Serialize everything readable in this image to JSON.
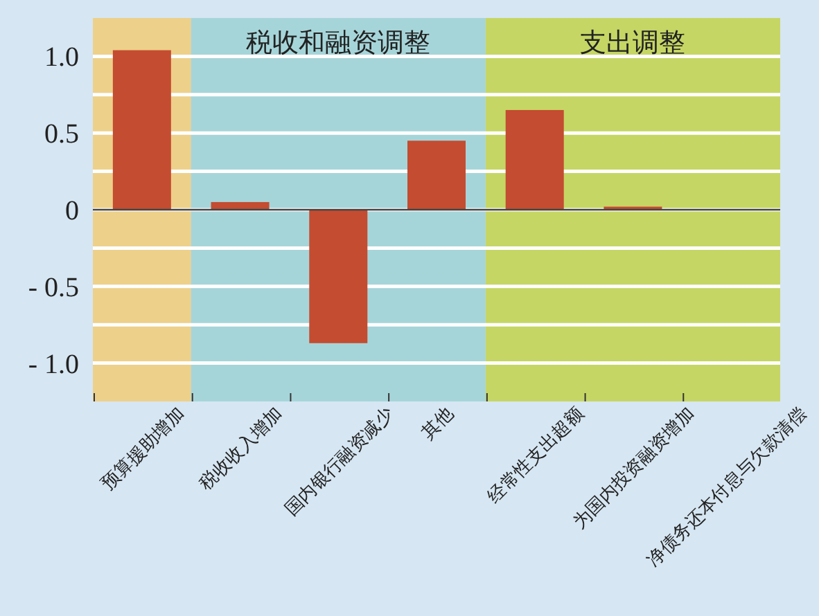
{
  "chart_data": {
    "type": "bar",
    "categories": [
      "预算援助增加",
      "税收收入增加",
      "国内银行融资减少",
      "其他",
      "经常性支出超额",
      "为国内投资融资增加",
      "净债务还本付息与欠款清偿"
    ],
    "values": [
      1.04,
      0.05,
      -0.87,
      0.45,
      0.65,
      0.02,
      0
    ],
    "color": "#c44c30",
    "ylim": [
      -1.25,
      1.25
    ],
    "yticks": [
      {
        "value": -1.0,
        "label": "- 1.0"
      },
      {
        "value": -0.75,
        "label": null
      },
      {
        "value": -0.5,
        "label": "- 0.5"
      },
      {
        "value": -0.25,
        "label": null
      },
      0,
      {
        "value": 0.25,
        "label": null
      },
      {
        "value": 0.5,
        "label": "0.5"
      },
      {
        "value": 0.75,
        "label": null
      },
      {
        "value": 1.0,
        "label": "1.0"
      }
    ],
    "grid": "y",
    "bands": [
      {
        "axis": "x",
        "from": "预算援助增加",
        "to": "预算援助增加",
        "label": null,
        "color": "#edd08a"
      },
      {
        "axis": "x",
        "from": "税收收入增加",
        "to": "其他",
        "label": "税收和融资调整",
        "color": "#a6d5d9"
      },
      {
        "axis": "x",
        "from": "经常性支出超额",
        "to": "净债务还本付息与欠款清偿",
        "label": "支出调整",
        "color": "#c6d664"
      }
    ]
  }
}
